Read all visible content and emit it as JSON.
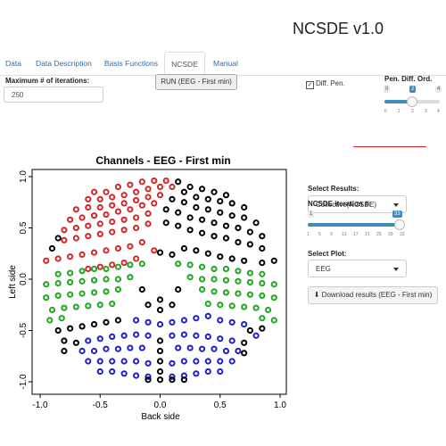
{
  "app": {
    "title": "NCSDE v1.0"
  },
  "tabs": [
    {
      "label": "Data"
    },
    {
      "label": "Data Description"
    },
    {
      "label": "Basis Functions"
    },
    {
      "label": "NCSDE"
    },
    {
      "label": "Manual"
    }
  ],
  "active_tab": "NCSDE",
  "iterations": {
    "label": "Maximum # of iterations:",
    "value": "250"
  },
  "run_button": {
    "label": "RUN (EEG - First min)"
  },
  "diff_pen": {
    "label": "Diff. Pen.",
    "checked": true
  },
  "pen_order": {
    "label": "Pen. Diff. Ord.",
    "min": "0",
    "max": "4",
    "value": "2",
    "ticks": [
      "0",
      "1",
      "2",
      "3",
      "4"
    ]
  },
  "select_results": {
    "label": "Select Results:",
    "value": "Collective(NCSDE)"
  },
  "ncsde_iteration": {
    "label": "NCSDE iteration #:",
    "min": "1",
    "max": "33",
    "value": "33",
    "ticks": [
      "1",
      "5",
      "9",
      "13",
      "17",
      "21",
      "25",
      "29",
      "33"
    ]
  },
  "select_plot": {
    "label": "Select Plot:",
    "value": "EEG"
  },
  "download_button": {
    "label": "Download results (EEG - First min)"
  },
  "colors": {
    "accent": "#3c8dbc",
    "red": "#d62728",
    "green": "#1fa81f",
    "blue": "#1f1fcc",
    "black": "#000000"
  },
  "icons": {
    "download": "download-icon",
    "caret": "caret-down-icon",
    "check": "checkbox-icon"
  },
  "chart_data": {
    "type": "scatter",
    "title": "Channels - EEG - First min",
    "xlabel": "Back side",
    "ylabel": "Left side",
    "xlim": [
      -1.0,
      1.0
    ],
    "ylim": [
      -1.0,
      1.0
    ],
    "xticks": [
      "-1.0",
      "-0.5",
      "0.0",
      "0.5",
      "1.0"
    ],
    "yticks": [
      "-1.0",
      "-0.5",
      "0.0",
      "0.5",
      "1.0"
    ],
    "legend": "none",
    "grid": false,
    "series": [
      {
        "color": "red",
        "points": [
          [
            -0.55,
            0.85
          ],
          [
            -0.45,
            0.85
          ],
          [
            -0.35,
            0.9
          ],
          [
            -0.25,
            0.92
          ],
          [
            -0.15,
            0.95
          ],
          [
            -0.05,
            0.96
          ],
          [
            0.05,
            0.96
          ],
          [
            -0.6,
            0.78
          ],
          [
            -0.5,
            0.78
          ],
          [
            -0.4,
            0.8
          ],
          [
            -0.3,
            0.82
          ],
          [
            -0.2,
            0.85
          ],
          [
            -0.1,
            0.88
          ],
          [
            0.0,
            0.9
          ],
          [
            0.1,
            0.9
          ],
          [
            -0.7,
            0.68
          ],
          [
            -0.6,
            0.7
          ],
          [
            -0.5,
            0.7
          ],
          [
            -0.4,
            0.72
          ],
          [
            -0.3,
            0.74
          ],
          [
            -0.2,
            0.77
          ],
          [
            -0.1,
            0.8
          ],
          [
            0.0,
            0.82
          ],
          [
            -0.75,
            0.58
          ],
          [
            -0.65,
            0.6
          ],
          [
            -0.55,
            0.62
          ],
          [
            -0.45,
            0.63
          ],
          [
            -0.35,
            0.66
          ],
          [
            -0.25,
            0.68
          ],
          [
            -0.15,
            0.72
          ],
          [
            -0.05,
            0.74
          ],
          [
            -0.8,
            0.48
          ],
          [
            -0.7,
            0.5
          ],
          [
            -0.6,
            0.52
          ],
          [
            -0.5,
            0.54
          ],
          [
            -0.4,
            0.56
          ],
          [
            -0.3,
            0.58
          ],
          [
            -0.2,
            0.6
          ],
          [
            -0.1,
            0.64
          ],
          [
            -0.8,
            0.38
          ],
          [
            -0.7,
            0.4
          ],
          [
            -0.6,
            0.42
          ],
          [
            -0.5,
            0.44
          ],
          [
            -0.4,
            0.46
          ],
          [
            -0.3,
            0.48
          ],
          [
            -0.2,
            0.5
          ],
          [
            -0.1,
            0.54
          ],
          [
            -0.95,
            0.18
          ],
          [
            -0.85,
            0.2
          ],
          [
            -0.75,
            0.22
          ],
          [
            -0.65,
            0.24
          ],
          [
            -0.55,
            0.26
          ],
          [
            -0.45,
            0.28
          ],
          [
            -0.35,
            0.3
          ],
          [
            -0.25,
            0.32
          ],
          [
            -0.15,
            0.36
          ],
          [
            -0.6,
            0.1
          ],
          [
            -0.5,
            0.12
          ],
          [
            -0.4,
            0.14
          ],
          [
            -0.3,
            0.16
          ],
          [
            -0.2,
            0.2
          ],
          [
            -0.05,
            0.28
          ]
        ]
      },
      {
        "color": "green",
        "points": [
          [
            -0.85,
            0.05
          ],
          [
            -0.75,
            0.06
          ],
          [
            -0.65,
            0.08
          ],
          [
            -0.55,
            0.1
          ],
          [
            -0.45,
            0.1
          ],
          [
            -0.35,
            0.12
          ],
          [
            -0.25,
            0.14
          ],
          [
            -0.15,
            0.15
          ],
          [
            -0.95,
            -0.05
          ],
          [
            -0.85,
            -0.04
          ],
          [
            -0.75,
            -0.03
          ],
          [
            -0.65,
            -0.02
          ],
          [
            -0.55,
            -0.01
          ],
          [
            -0.45,
            0.0
          ],
          [
            -0.35,
            0.0
          ],
          [
            -0.25,
            0.02
          ],
          [
            -0.95,
            -0.18
          ],
          [
            -0.85,
            -0.16
          ],
          [
            -0.75,
            -0.15
          ],
          [
            -0.65,
            -0.14
          ],
          [
            -0.55,
            -0.13
          ],
          [
            -0.45,
            -0.12
          ],
          [
            -0.35,
            -0.1
          ],
          [
            -0.9,
            -0.3
          ],
          [
            -0.8,
            -0.28
          ],
          [
            -0.7,
            -0.27
          ],
          [
            -0.6,
            -0.26
          ],
          [
            -0.5,
            -0.25
          ],
          [
            -0.4,
            -0.24
          ],
          [
            -0.92,
            -0.4
          ],
          [
            -0.82,
            -0.38
          ],
          [
            0.95,
            -0.4
          ],
          [
            0.85,
            -0.38
          ],
          [
            0.9,
            -0.3
          ],
          [
            0.8,
            -0.28
          ],
          [
            0.7,
            -0.27
          ],
          [
            0.6,
            -0.26
          ],
          [
            0.5,
            -0.25
          ],
          [
            0.4,
            -0.24
          ],
          [
            0.95,
            -0.18
          ],
          [
            0.85,
            -0.16
          ],
          [
            0.75,
            -0.15
          ],
          [
            0.65,
            -0.14
          ],
          [
            0.55,
            -0.13
          ],
          [
            0.45,
            -0.12
          ],
          [
            0.35,
            -0.1
          ],
          [
            0.95,
            -0.05
          ],
          [
            0.85,
            -0.04
          ],
          [
            0.75,
            -0.03
          ],
          [
            0.65,
            -0.02
          ],
          [
            0.55,
            -0.01
          ],
          [
            0.45,
            0.0
          ],
          [
            0.35,
            0.0
          ],
          [
            0.25,
            0.02
          ],
          [
            0.85,
            0.05
          ],
          [
            0.75,
            0.06
          ],
          [
            0.65,
            0.08
          ],
          [
            0.55,
            0.1
          ],
          [
            0.45,
            0.1
          ],
          [
            0.35,
            0.12
          ],
          [
            0.25,
            0.14
          ],
          [
            0.15,
            0.15
          ]
        ]
      },
      {
        "color": "blue",
        "points": [
          [
            -0.2,
            -0.4
          ],
          [
            -0.1,
            -0.42
          ],
          [
            0.0,
            -0.44
          ],
          [
            0.1,
            -0.42
          ],
          [
            0.2,
            -0.4
          ],
          [
            0.3,
            -0.38
          ],
          [
            0.4,
            -0.36
          ],
          [
            0.5,
            -0.4
          ],
          [
            0.6,
            -0.42
          ],
          [
            0.7,
            -0.44
          ],
          [
            -0.6,
            -0.6
          ],
          [
            -0.5,
            -0.58
          ],
          [
            -0.4,
            -0.56
          ],
          [
            -0.3,
            -0.55
          ],
          [
            -0.2,
            -0.54
          ],
          [
            -0.1,
            -0.55
          ],
          [
            0.1,
            -0.55
          ],
          [
            0.2,
            -0.54
          ],
          [
            0.3,
            -0.55
          ],
          [
            0.4,
            -0.56
          ],
          [
            0.5,
            -0.58
          ],
          [
            0.6,
            -0.6
          ],
          [
            0.8,
            -0.55
          ],
          [
            -0.65,
            -0.7
          ],
          [
            -0.55,
            -0.7
          ],
          [
            -0.45,
            -0.68
          ],
          [
            -0.35,
            -0.68
          ],
          [
            -0.25,
            -0.67
          ],
          [
            -0.15,
            -0.67
          ],
          [
            0.15,
            -0.67
          ],
          [
            0.25,
            -0.67
          ],
          [
            0.35,
            -0.68
          ],
          [
            0.45,
            -0.68
          ],
          [
            0.55,
            -0.7
          ],
          [
            0.65,
            -0.7
          ],
          [
            -0.6,
            -0.8
          ],
          [
            -0.5,
            -0.8
          ],
          [
            -0.4,
            -0.8
          ],
          [
            -0.3,
            -0.8
          ],
          [
            -0.2,
            -0.8
          ],
          [
            -0.1,
            -0.82
          ],
          [
            0.1,
            -0.82
          ],
          [
            0.2,
            -0.8
          ],
          [
            0.3,
            -0.8
          ],
          [
            0.4,
            -0.8
          ],
          [
            0.5,
            -0.8
          ],
          [
            0.6,
            -0.8
          ],
          [
            -0.5,
            -0.9
          ],
          [
            -0.4,
            -0.9
          ],
          [
            -0.3,
            -0.92
          ],
          [
            -0.2,
            -0.94
          ],
          [
            -0.1,
            -0.95
          ],
          [
            0.1,
            -0.95
          ],
          [
            0.2,
            -0.94
          ],
          [
            0.3,
            -0.92
          ],
          [
            0.4,
            -0.9
          ],
          [
            0.5,
            -0.9
          ]
        ]
      },
      {
        "color": "black",
        "points": [
          [
            0.15,
            0.95
          ],
          [
            0.25,
            0.9
          ],
          [
            0.35,
            0.88
          ],
          [
            0.45,
            0.85
          ],
          [
            0.55,
            0.82
          ],
          [
            0.2,
            0.85
          ],
          [
            0.3,
            0.8
          ],
          [
            0.4,
            0.78
          ],
          [
            0.5,
            0.76
          ],
          [
            0.6,
            0.74
          ],
          [
            0.7,
            0.7
          ],
          [
            0.1,
            0.78
          ],
          [
            0.2,
            0.75
          ],
          [
            0.3,
            0.7
          ],
          [
            0.4,
            0.68
          ],
          [
            0.5,
            0.65
          ],
          [
            0.6,
            0.62
          ],
          [
            0.7,
            0.6
          ],
          [
            0.8,
            0.55
          ],
          [
            0.05,
            0.68
          ],
          [
            0.15,
            0.65
          ],
          [
            0.25,
            0.6
          ],
          [
            0.35,
            0.58
          ],
          [
            0.45,
            0.55
          ],
          [
            0.55,
            0.52
          ],
          [
            0.65,
            0.5
          ],
          [
            0.75,
            0.46
          ],
          [
            0.85,
            0.42
          ],
          [
            0.05,
            0.55
          ],
          [
            0.15,
            0.52
          ],
          [
            0.25,
            0.48
          ],
          [
            0.35,
            0.45
          ],
          [
            0.45,
            0.42
          ],
          [
            0.55,
            0.4
          ],
          [
            0.65,
            0.36
          ],
          [
            0.75,
            0.34
          ],
          [
            0.85,
            0.3
          ],
          [
            0.0,
            0.26
          ],
          [
            0.1,
            0.24
          ],
          [
            0.2,
            0.3
          ],
          [
            0.3,
            0.28
          ],
          [
            0.4,
            0.25
          ],
          [
            0.5,
            0.22
          ],
          [
            0.6,
            0.2
          ],
          [
            0.7,
            0.18
          ],
          [
            0.85,
            0.16
          ],
          [
            0.95,
            0.18
          ],
          [
            -0.85,
            0.4
          ],
          [
            -0.9,
            0.3
          ],
          [
            -0.15,
            -0.1
          ],
          [
            0.0,
            -0.2
          ],
          [
            0.15,
            -0.1
          ],
          [
            0.0,
            -0.3
          ],
          [
            -0.1,
            -0.25
          ],
          [
            0.1,
            -0.25
          ],
          [
            -0.85,
            -0.5
          ],
          [
            -0.75,
            -0.48
          ],
          [
            -0.65,
            -0.46
          ],
          [
            -0.55,
            -0.44
          ],
          [
            -0.45,
            -0.42
          ],
          [
            -0.35,
            -0.4
          ],
          [
            0.85,
            -0.48
          ],
          [
            0.75,
            -0.5
          ],
          [
            -0.8,
            -0.6
          ],
          [
            -0.8,
            -0.7
          ],
          [
            -0.7,
            -0.62
          ],
          [
            0.7,
            -0.62
          ],
          [
            0.7,
            -0.72
          ],
          [
            0.0,
            -0.6
          ],
          [
            0.0,
            -0.7
          ],
          [
            0.0,
            -0.8
          ],
          [
            0.0,
            -0.9
          ],
          [
            0.0,
            -0.98
          ],
          [
            -0.1,
            -0.98
          ],
          [
            0.1,
            -0.98
          ],
          [
            0.2,
            -0.98
          ]
        ]
      }
    ]
  }
}
